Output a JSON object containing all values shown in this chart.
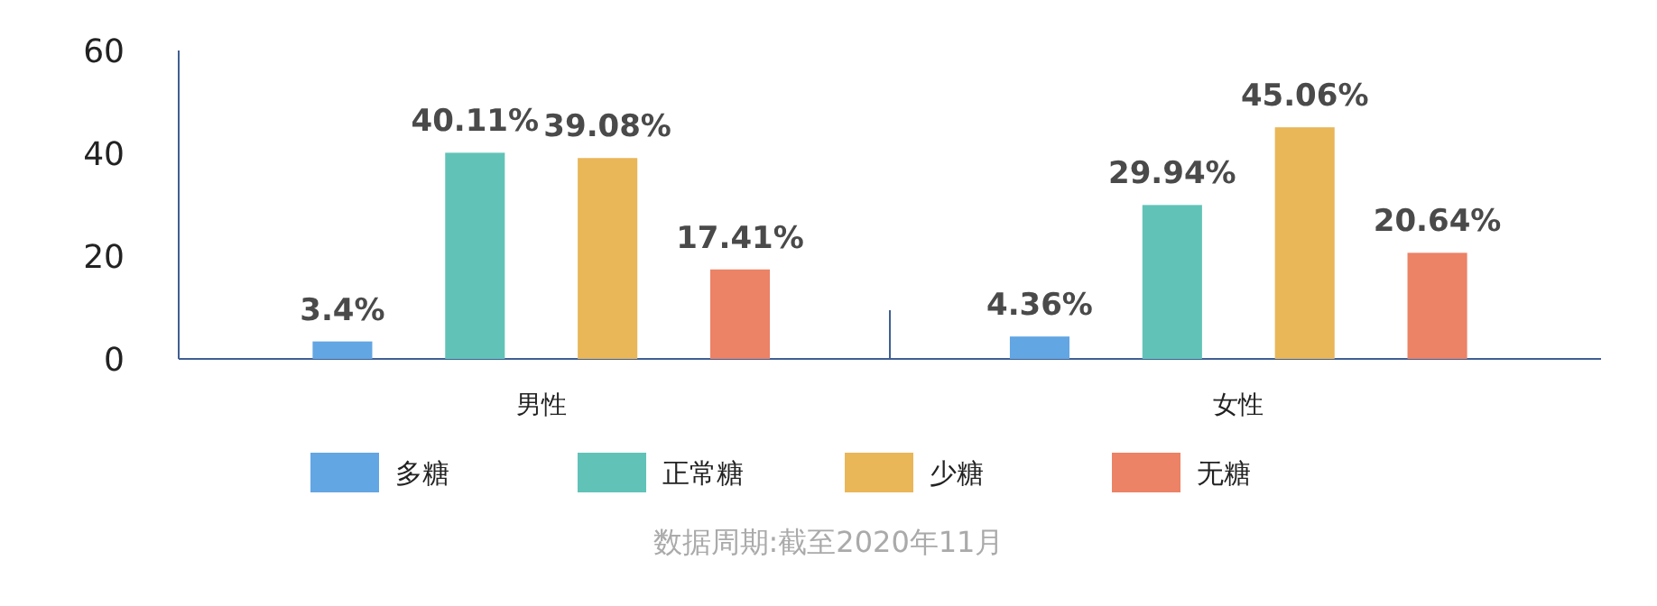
{
  "chart_data": {
    "type": "bar",
    "categories": [
      "男性",
      "女性"
    ],
    "series": [
      {
        "name": "多糖",
        "color": "#62a6e3",
        "values": [
          3.4,
          4.36
        ],
        "value_labels": [
          "3.4%",
          "4.36%"
        ]
      },
      {
        "name": "正常糖",
        "color": "#61c3b8",
        "values": [
          40.11,
          29.94
        ],
        "value_labels": [
          "40.11%",
          "29.94%"
        ]
      },
      {
        "name": "少糖",
        "color": "#e9b658",
        "values": [
          39.08,
          45.06
        ],
        "value_labels": [
          "39.08%",
          "45.06%"
        ]
      },
      {
        "name": "无糖",
        "color": "#ec8266",
        "values": [
          17.41,
          20.64
        ],
        "value_labels": [
          "17.41%",
          "20.64%"
        ]
      }
    ],
    "ylim": [
      0,
      60
    ],
    "yticks": [
      0,
      20,
      40,
      60
    ],
    "grid": false,
    "legend": "bottom",
    "annotations": [
      "数据周期:截至2020年11月"
    ]
  }
}
